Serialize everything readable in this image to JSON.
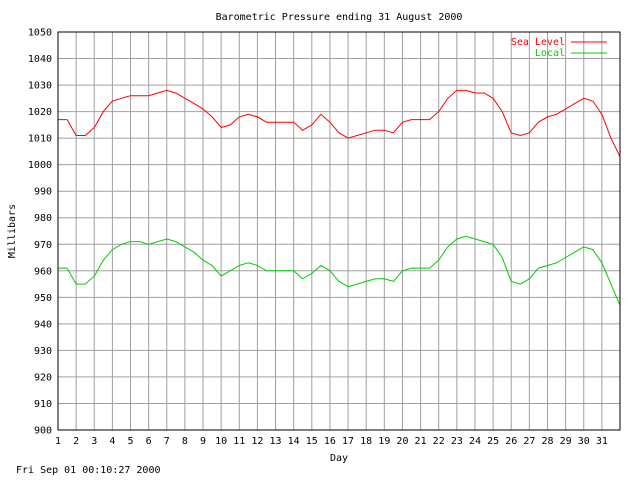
{
  "footer": {
    "timestamp": "Fri Sep 01 00:10:27 2000"
  },
  "colors": {
    "sea_level": "#ff0000",
    "local": "#00cc00",
    "grid": "#a0a0a0",
    "axis": "#000000"
  },
  "chart_data": {
    "type": "line",
    "title": "Barometric Pressure ending 31 August 2000",
    "xlabel": "Day",
    "ylabel": "Millibars",
    "xlim": [
      1,
      32
    ],
    "ylim": [
      900,
      1050
    ],
    "yticks": [
      900,
      910,
      920,
      930,
      940,
      950,
      960,
      970,
      980,
      990,
      1000,
      1010,
      1020,
      1030,
      1040,
      1050
    ],
    "xticks": [
      "1",
      "2",
      "3",
      "4",
      "5",
      "6",
      "7",
      "8",
      "9",
      "10",
      "11",
      "12",
      "13",
      "14",
      "15",
      "16",
      "17",
      "18",
      "19",
      "20",
      "21",
      "22",
      "23",
      "24",
      "25",
      "26",
      "27",
      "28",
      "29",
      "30",
      "31"
    ],
    "grid": true,
    "legend_position": "top-right",
    "series": [
      {
        "name": "Sea Level",
        "x": [
          1,
          1.5,
          2,
          2.5,
          3,
          3.5,
          4,
          4.5,
          5,
          5.5,
          6,
          6.5,
          7,
          7.5,
          8,
          8.5,
          9,
          9.5,
          10,
          10.5,
          11,
          11.5,
          12,
          12.5,
          13,
          13.5,
          14,
          14.5,
          15,
          15.5,
          16,
          16.5,
          17,
          17.5,
          18,
          18.5,
          19,
          19.5,
          20,
          20.5,
          21,
          21.5,
          22,
          22.5,
          23,
          23.5,
          24,
          24.5,
          25,
          25.5,
          26,
          26.5,
          27,
          27.5,
          28,
          28.5,
          29,
          29.5,
          30,
          30.5,
          31,
          31.5,
          32
        ],
        "values": [
          1017,
          1017,
          1011,
          1011,
          1014,
          1020,
          1024,
          1025,
          1026,
          1026,
          1026,
          1027,
          1028,
          1027,
          1025,
          1023,
          1021,
          1018,
          1014,
          1015,
          1018,
          1019,
          1018,
          1016,
          1016,
          1016,
          1016,
          1013,
          1015,
          1019,
          1016,
          1012,
          1010,
          1011,
          1012,
          1013,
          1013,
          1012,
          1016,
          1017,
          1017,
          1017,
          1020,
          1025,
          1028,
          1028,
          1027,
          1027,
          1025,
          1020,
          1012,
          1011,
          1012,
          1016,
          1018,
          1019,
          1021,
          1023,
          1025,
          1024,
          1019,
          1010,
          1003
        ]
      },
      {
        "name": "Local",
        "x": [
          1,
          1.5,
          2,
          2.5,
          3,
          3.5,
          4,
          4.5,
          5,
          5.5,
          6,
          6.5,
          7,
          7.5,
          8,
          8.5,
          9,
          9.5,
          10,
          10.5,
          11,
          11.5,
          12,
          12.5,
          13,
          13.5,
          14,
          14.5,
          15,
          15.5,
          16,
          16.5,
          17,
          17.5,
          18,
          18.5,
          19,
          19.5,
          20,
          20.5,
          21,
          21.5,
          22,
          22.5,
          23,
          23.5,
          24,
          24.5,
          25,
          25.5,
          26,
          26.5,
          27,
          27.5,
          28,
          28.5,
          29,
          29.5,
          30,
          30.5,
          31,
          31.5,
          32
        ],
        "values": [
          961,
          961,
          955,
          955,
          958,
          964,
          968,
          970,
          971,
          971,
          970,
          971,
          972,
          971,
          969,
          967,
          964,
          962,
          958,
          960,
          962,
          963,
          962,
          960,
          960,
          960,
          960,
          957,
          959,
          962,
          960,
          956,
          954,
          955,
          956,
          957,
          957,
          956,
          960,
          961,
          961,
          961,
          964,
          969,
          972,
          973,
          972,
          971,
          970,
          965,
          956,
          955,
          957,
          961,
          962,
          963,
          965,
          967,
          969,
          968,
          963,
          955,
          947
        ]
      }
    ]
  }
}
